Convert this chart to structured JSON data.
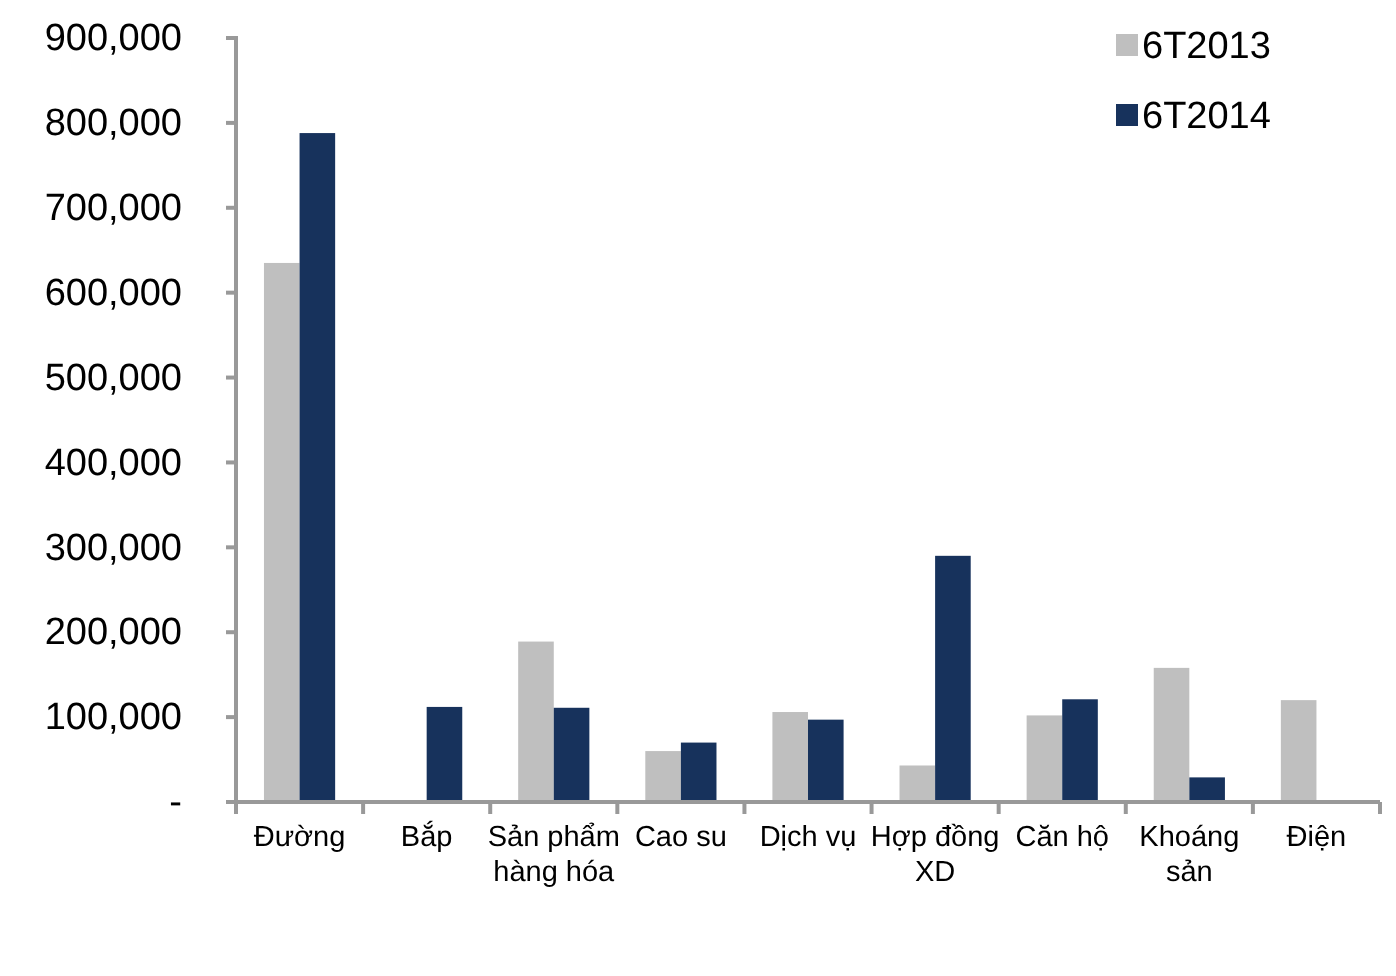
{
  "chart_data": {
    "type": "bar",
    "categories": [
      "Đường",
      "Bắp",
      "Sản phẩm hàng hóa",
      "Cao su",
      "Dịch vụ",
      "Hợp đồng XD",
      "Căn hộ",
      "Khoáng sản",
      "Điện"
    ],
    "series": [
      {
        "name": "6T2013",
        "color": "#bfbfbf",
        "values": [
          635000,
          null,
          189000,
          60000,
          106000,
          43000,
          102000,
          158000,
          120000
        ]
      },
      {
        "name": "6T2014",
        "color": "#17325c",
        "values": [
          788000,
          112000,
          111000,
          70000,
          97000,
          290000,
          121000,
          29000,
          null
        ]
      }
    ],
    "ylim": [
      0,
      900000
    ],
    "yticks": [
      {
        "value": 0,
        "label": "-"
      },
      {
        "value": 100000,
        "label": "100,000"
      },
      {
        "value": 200000,
        "label": "200,000"
      },
      {
        "value": 300000,
        "label": "300,000"
      },
      {
        "value": 400000,
        "label": "400,000"
      },
      {
        "value": 500000,
        "label": "500,000"
      },
      {
        "value": 600000,
        "label": "600,000"
      },
      {
        "value": 700000,
        "label": "700,000"
      },
      {
        "value": 800000,
        "label": "800,000"
      },
      {
        "value": 900000,
        "label": "900,000"
      }
    ],
    "grid": false,
    "legend": "top right"
  }
}
